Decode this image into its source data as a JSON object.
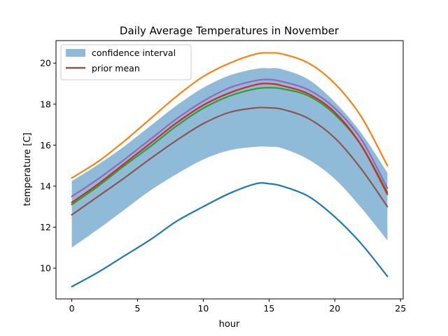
{
  "chart_data": {
    "type": "line",
    "title": "Daily Average Temperatures in November",
    "xlabel": "hour",
    "ylabel": "temperature [C]",
    "xlim": [
      -1.2,
      25.2
    ],
    "ylim": [
      8.5,
      21.1
    ],
    "xticks": [
      0,
      5,
      10,
      15,
      20,
      25
    ],
    "yticks": [
      10,
      12,
      14,
      16,
      18,
      20
    ],
    "grid": false,
    "legend_position": "top-left",
    "legend": {
      "confidence_label": "confidence interval",
      "prior_label": "prior mean"
    },
    "x": [
      0,
      2,
      4,
      6,
      8,
      10,
      12,
      14,
      15,
      16,
      18,
      20,
      22,
      24
    ],
    "confidence_interval": {
      "color": "#8fbbd9",
      "lower": [
        11.0,
        11.9,
        12.85,
        13.8,
        14.6,
        15.3,
        15.75,
        15.92,
        15.92,
        15.85,
        15.3,
        14.35,
        12.95,
        11.35
      ],
      "upper": [
        14.25,
        15.05,
        15.95,
        16.95,
        17.95,
        18.8,
        19.4,
        19.72,
        19.75,
        19.7,
        19.2,
        18.1,
        16.6,
        14.65
      ]
    },
    "series": [
      {
        "role": "sample",
        "color": "#1f77b4",
        "values": [
          9.1,
          9.8,
          10.6,
          11.4,
          12.3,
          13.0,
          13.65,
          14.12,
          14.12,
          14.0,
          13.5,
          12.5,
          11.2,
          9.6
        ]
      },
      {
        "role": "sample",
        "color": "#ff7f0e",
        "values": [
          14.4,
          15.2,
          16.2,
          17.3,
          18.4,
          19.35,
          20.0,
          20.45,
          20.5,
          20.45,
          20.0,
          19.0,
          17.4,
          15.0
        ]
      },
      {
        "role": "sample",
        "color": "#2ca02c",
        "values": [
          13.1,
          14.0,
          15.0,
          15.95,
          16.95,
          17.8,
          18.4,
          18.75,
          18.8,
          18.75,
          18.4,
          17.5,
          16.0,
          13.7
        ]
      },
      {
        "role": "sample",
        "color": "#d62728",
        "values": [
          13.2,
          14.1,
          15.1,
          16.1,
          17.1,
          17.95,
          18.55,
          18.95,
          19.0,
          18.9,
          18.5,
          17.6,
          16.0,
          13.6
        ]
      },
      {
        "role": "sample",
        "color": "#9467bd",
        "values": [
          13.5,
          14.35,
          15.3,
          16.3,
          17.3,
          18.15,
          18.8,
          19.15,
          19.2,
          19.1,
          18.7,
          17.8,
          16.3,
          13.9
        ]
      },
      {
        "role": "prior_mean",
        "name": "prior mean",
        "color": "#8c564b",
        "values": [
          12.6,
          13.5,
          14.4,
          15.35,
          16.25,
          17.05,
          17.6,
          17.82,
          17.82,
          17.75,
          17.3,
          16.35,
          14.85,
          13.0
        ]
      }
    ]
  }
}
